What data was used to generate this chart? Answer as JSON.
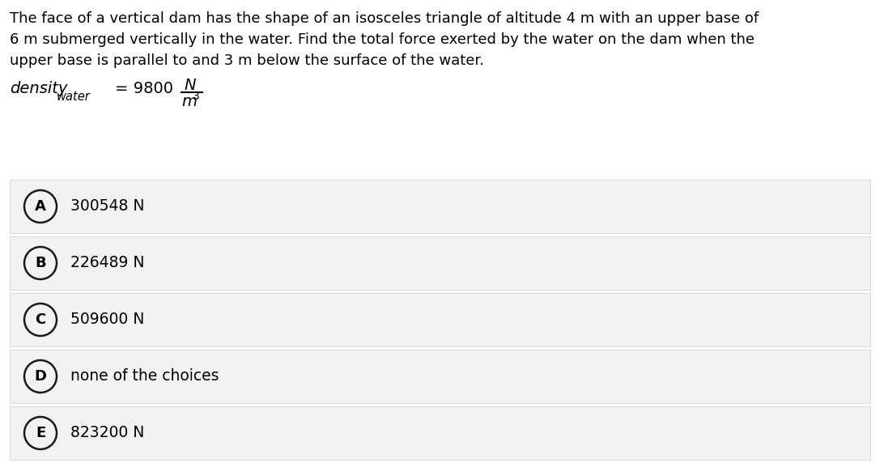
{
  "question_lines": [
    "The face of a vertical dam has the shape of an isosceles triangle of altitude 4 m with an upper base of",
    "6 m submerged vertically in the water. Find the total force exerted by the water on the dam when the",
    "upper base is parallel to and 3 m below the surface of the water."
  ],
  "density_label": "density",
  "density_subscript": "water",
  "density_value": "= 9800",
  "density_unit_num": "N",
  "density_unit_den": "m",
  "density_unit_exp": "3",
  "options": [
    {
      "letter": "A",
      "text": "300548 N"
    },
    {
      "letter": "B",
      "text": "226489 N"
    },
    {
      "letter": "C",
      "text": "509600 N"
    },
    {
      "letter": "D",
      "text": "none of the choices"
    },
    {
      "letter": "E",
      "text": "823200 N"
    }
  ],
  "bg_color": "#ffffff",
  "option_bg_color": "#f2f2f2",
  "option_border_color": "#cccccc",
  "text_color": "#000000",
  "circle_edge_color": "#1a1a1a",
  "question_fontsize": 13.0,
  "density_fontsize": 14.0,
  "option_fontsize": 13.5,
  "fig_width": 10.87,
  "fig_height": 5.72
}
